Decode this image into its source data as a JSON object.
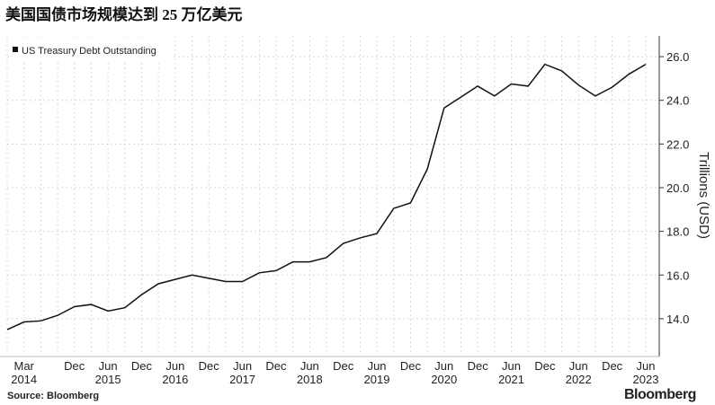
{
  "chart_data": {
    "type": "line",
    "title": "美国国债市场规模达到 25 万亿美元",
    "y_label": "Trillions (USD)",
    "source": "Source: Bloomberg",
    "brand": "Bloomberg",
    "categories": [
      null,
      "Mar 2014",
      null,
      null,
      "Dec",
      null,
      "Jun 2015",
      null,
      "Dec",
      null,
      "Jun 2016",
      null,
      "Dec",
      null,
      "Jun 2017",
      null,
      "Dec",
      null,
      "Jun 2018",
      null,
      "Dec",
      null,
      "Jun 2019",
      null,
      "Dec",
      null,
      "Jun 2020",
      null,
      "Dec",
      null,
      "Jun 2021",
      null,
      "Dec",
      null,
      "Jun 2022",
      null,
      "Dec",
      null,
      "Jun 2023"
    ],
    "series": [
      {
        "name": "US Treasury Debt Outstanding",
        "color": "#111111",
        "values": [
          13.5,
          13.85,
          13.9,
          14.15,
          14.55,
          14.65,
          14.35,
          14.5,
          15.1,
          15.6,
          15.8,
          16.0,
          15.85,
          15.7,
          15.7,
          16.1,
          16.2,
          16.6,
          16.6,
          16.8,
          17.45,
          17.7,
          17.9,
          19.05,
          19.3,
          20.85,
          23.65,
          24.15,
          24.65,
          24.2,
          24.75,
          24.65,
          25.65,
          25.35,
          24.7,
          24.2,
          24.6,
          25.2,
          25.65
        ]
      }
    ],
    "ylim": [
      12.35,
      26.95
    ],
    "yticks": [
      {
        "value": 14,
        "label": "14.0"
      },
      {
        "value": 16,
        "label": "16.0"
      },
      {
        "value": 18,
        "label": "18.0"
      },
      {
        "value": 20,
        "label": "20.0"
      },
      {
        "value": 22,
        "label": "22.0"
      },
      {
        "value": 24,
        "label": "24.0"
      },
      {
        "value": 26,
        "label": "26.0"
      }
    ],
    "grid": true
  }
}
